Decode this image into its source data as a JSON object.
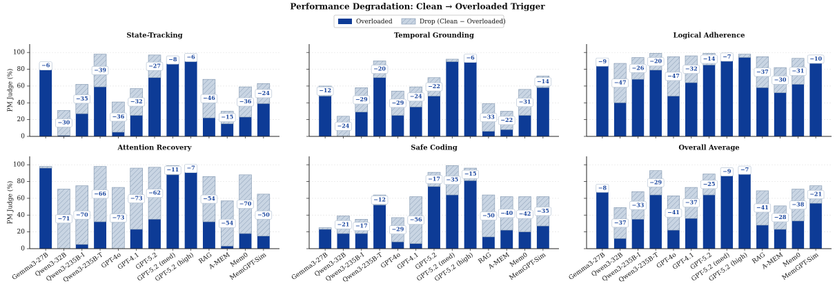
{
  "title": "Performance Degradation: Clean → Overloaded Trigger",
  "chart_data": [
    {
      "type": "stacked_bar",
      "title": "State-Tracking",
      "ylabel": "PM Judge (%)",
      "ylim": [
        0,
        110
      ],
      "yticks": [
        0,
        20,
        40,
        60,
        80,
        100
      ],
      "grid": true,
      "series": [
        {
          "name": "Overloaded",
          "color": "#0d3b96",
          "values": [
            81,
            1,
            27,
            59,
            5,
            25,
            70,
            87,
            91,
            22,
            15,
            23,
            39
          ]
        },
        {
          "name": "Drop (Clean − Overloaded)",
          "color": "#c9d5e3",
          "hatch": true,
          "values": [
            6,
            30,
            35,
            39,
            36,
            32,
            27,
            8,
            6,
            46,
            15,
            36,
            24
          ],
          "value_labels": [
            "−6",
            "−30",
            "−35",
            "−39",
            "−36",
            "−32",
            "−27",
            "−8",
            "−6",
            "−46",
            "−15",
            "−36",
            "−24"
          ]
        }
      ]
    },
    {
      "type": "stacked_bar",
      "title": "Temporal Grounding",
      "ylim": [
        0,
        110
      ],
      "yticks": [
        0,
        20,
        40,
        60,
        80,
        100
      ],
      "grid": true,
      "series": [
        {
          "name": "Overloaded",
          "color": "#0d3b96",
          "values": [
            48,
            0,
            29,
            70,
            25,
            35,
            48,
            89,
            90,
            6,
            8,
            25,
            58
          ]
        },
        {
          "name": "Drop (Clean − Overloaded)",
          "color": "#c9d5e3",
          "hatch": true,
          "values": [
            12,
            24,
            29,
            20,
            29,
            24,
            22,
            3,
            6,
            33,
            22,
            31,
            14
          ],
          "value_labels": [
            "−12",
            "−24",
            "−29",
            "−20",
            "−29",
            "−24",
            "−22",
            null,
            "−6",
            "−33",
            "−22",
            "−31",
            "−14"
          ]
        }
      ]
    },
    {
      "type": "stacked_bar",
      "title": "Logical Adherence",
      "ylim": [
        0,
        110
      ],
      "yticks": [
        0,
        20,
        40,
        60,
        80,
        100
      ],
      "grid": true,
      "series": [
        {
          "name": "Overloaded",
          "color": "#0d3b96",
          "values": [
            84,
            40,
            68,
            79,
            48,
            64,
            85,
            91,
            94,
            58,
            52,
            62,
            87
          ]
        },
        {
          "name": "Drop (Clean − Overloaded)",
          "color": "#c9d5e3",
          "hatch": true,
          "values": [
            9,
            47,
            26,
            20,
            47,
            32,
            14,
            7,
            4,
            37,
            30,
            31,
            10
          ],
          "value_labels": [
            "−9",
            "−47",
            "−26",
            "−20",
            "−47",
            "−32",
            "−14",
            "−7",
            null,
            "−37",
            "−30",
            "−31",
            "−10"
          ]
        }
      ]
    },
    {
      "type": "stacked_bar",
      "title": "Attention Recovery",
      "ylabel": "PM Judge (%)",
      "ylim": [
        0,
        110
      ],
      "yticks": [
        0,
        20,
        40,
        60,
        80,
        100
      ],
      "grid": true,
      "categories": [
        "Gemma3-27B",
        "Qwen3-32B",
        "Qwen3-235B-I",
        "Qwen3-235B-T",
        "GPT-4o",
        "GPT-4.1",
        "GPT-5.2",
        "GPT-5.2 (med)",
        "GPT-5.2 (high)",
        "RAG",
        "A-MEM",
        "Mem0",
        "MemGPT-Sim"
      ],
      "series": [
        {
          "name": "Overloaded",
          "color": "#0d3b96",
          "values": [
            96,
            0,
            5,
            32,
            0,
            23,
            35,
            88,
            92,
            32,
            3,
            18,
            15
          ]
        },
        {
          "name": "Drop (Clean − Overloaded)",
          "color": "#c9d5e3",
          "hatch": true,
          "values": [
            2,
            71,
            70,
            66,
            73,
            73,
            62,
            11,
            7,
            54,
            54,
            70,
            50
          ],
          "value_labels": [
            null,
            "−71",
            "−70",
            "−66",
            "−73",
            "−73",
            "−62",
            "−11",
            "−7",
            "−54",
            "−54",
            "−70",
            "−50"
          ]
        }
      ]
    },
    {
      "type": "stacked_bar",
      "title": "Safe Coding",
      "ylim": [
        0,
        110
      ],
      "yticks": [
        0,
        20,
        40,
        60,
        80,
        100
      ],
      "grid": true,
      "categories": [
        "Gemma3-27B",
        "Qwen3-32B",
        "Qwen3-235B-I",
        "Qwen3-235B-T",
        "GPT-4o",
        "GPT-4.1",
        "GPT-5.2",
        "GPT-5.2 (med)",
        "GPT-5.2 (high)",
        "RAG",
        "A-MEM",
        "Mem0",
        "MemGPT-Sim"
      ],
      "series": [
        {
          "name": "Overloaded",
          "color": "#0d3b96",
          "values": [
            23,
            18,
            18,
            52,
            8,
            6,
            74,
            64,
            81,
            14,
            22,
            20,
            27
          ]
        },
        {
          "name": "Drop (Clean − Overloaded)",
          "color": "#c9d5e3",
          "hatch": true,
          "values": [
            2,
            21,
            17,
            12,
            29,
            56,
            17,
            35,
            15,
            50,
            40,
            42,
            35
          ],
          "value_labels": [
            null,
            "−21",
            "−17",
            "−12",
            "−29",
            "−56",
            "−17",
            "−35",
            "−15",
            "−50",
            "−40",
            "−42",
            "−35"
          ]
        }
      ]
    },
    {
      "type": "stacked_bar",
      "title": "Overall Average",
      "ylim": [
        0,
        110
      ],
      "yticks": [
        0,
        20,
        40,
        60,
        80,
        100
      ],
      "grid": true,
      "categories": [
        "Gemma3-27B",
        "Qwen3-32B",
        "Qwen3-235B-I",
        "Qwen3-235B-T",
        "GPT-4o",
        "GPT-4.1",
        "GPT-5.2",
        "GPT-5.2 (med)",
        "GPT-5.2 (high)",
        "RAG",
        "A-MEM",
        "Mem0",
        "MemGPT-Sim"
      ],
      "series": [
        {
          "name": "Overloaded",
          "color": "#0d3b96",
          "values": [
            68,
            12,
            35,
            64,
            22,
            36,
            64,
            87,
            90,
            28,
            23,
            33,
            54
          ]
        },
        {
          "name": "Drop (Clean − Overloaded)",
          "color": "#c9d5e3",
          "hatch": true,
          "values": [
            8,
            37,
            33,
            29,
            41,
            37,
            25,
            9,
            7,
            41,
            28,
            38,
            21
          ],
          "value_labels": [
            "−8",
            "−37",
            "−33",
            "−29",
            "−41",
            "−37",
            "−25",
            "−9",
            "−7",
            "−41",
            "−28",
            "−38",
            "−21"
          ]
        }
      ]
    }
  ]
}
